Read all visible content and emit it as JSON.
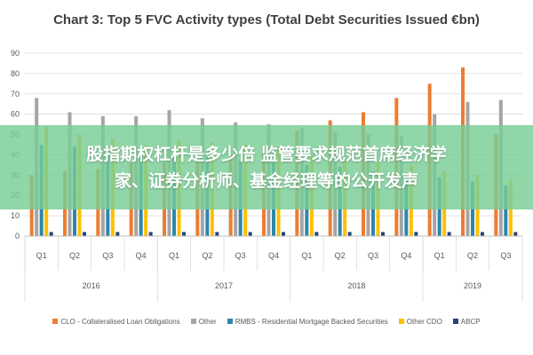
{
  "chart_data": {
    "type": "bar",
    "title": "Chart 3: Top 5 FVC Activity types (Total Debt Securities Issued €bn)",
    "xlabel": "",
    "ylabel": "",
    "ylim": [
      0,
      90
    ],
    "yticks": [
      0,
      10,
      20,
      30,
      40,
      50,
      60,
      70,
      80,
      90
    ],
    "grid": true,
    "legend_position": "bottom",
    "categories": [
      "Q1",
      "Q2",
      "Q3",
      "Q4",
      "Q1",
      "Q2",
      "Q3",
      "Q4",
      "Q1",
      "Q2",
      "Q3",
      "Q4",
      "Q1",
      "Q2",
      "Q3"
    ],
    "year_groups": [
      {
        "label": "2016",
        "count": 4
      },
      {
        "label": "2017",
        "count": 4
      },
      {
        "label": "2018",
        "count": 4
      },
      {
        "label": "2019",
        "count": 3
      }
    ],
    "series": [
      {
        "name": "CLO - Collateralised Loan Obligations",
        "color": "#ED7D31",
        "values": [
          30,
          32,
          33,
          36,
          36,
          38,
          40,
          41,
          52,
          57,
          61,
          68,
          75,
          83,
          50
        ]
      },
      {
        "name": "Other",
        "color": "#A5A5A5",
        "values": [
          68,
          61,
          59,
          59,
          62,
          58,
          56,
          55,
          53,
          51,
          50,
          49,
          60,
          66,
          67
        ]
      },
      {
        "name": "RMBS - Residential Mortgage Backed Securities",
        "color": "#2E86AB",
        "values": [
          45,
          44,
          42,
          40,
          40,
          39,
          37,
          36,
          35,
          34,
          32,
          31,
          29,
          27,
          25
        ]
      },
      {
        "name": "Other CDO",
        "color": "#FFC000",
        "values": [
          54,
          50,
          48,
          45,
          47,
          46,
          45,
          44,
          40,
          38,
          36,
          35,
          32,
          30,
          28
        ]
      },
      {
        "name": "ABCP",
        "color": "#264478",
        "values": [
          2,
          2,
          2,
          2,
          2,
          2,
          2,
          2,
          2,
          2,
          2,
          2,
          2,
          2,
          2
        ]
      }
    ]
  },
  "overlay": {
    "line1": "股指期权杠杆是多少倍 监管要求规范首席经济学",
    "line2": "家、证券分析师、基金经理等的公开发声"
  }
}
